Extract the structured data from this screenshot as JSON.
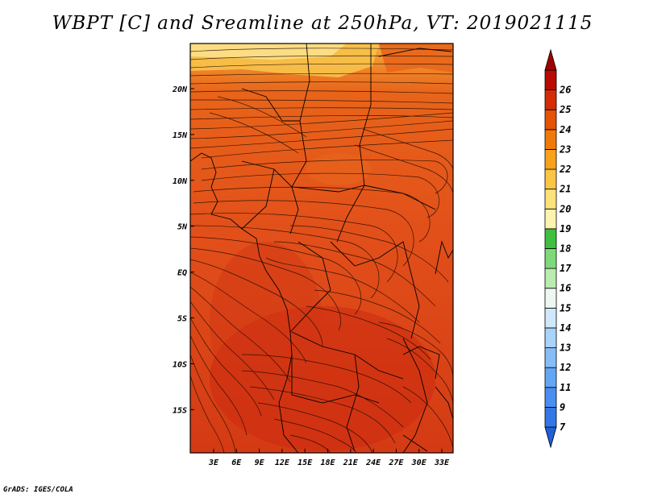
{
  "title": "WBPT [C] and Sreamline at 250hPa, VT: 2019021115",
  "credit": "GrADS: IGES/COLA",
  "map": {
    "lon_labels": [
      "3E",
      "6E",
      "9E",
      "12E",
      "15E",
      "18E",
      "21E",
      "24E",
      "27E",
      "30E",
      "33E"
    ],
    "lat_labels": [
      "20N",
      "15N",
      "10N",
      "5N",
      "EQ",
      "5S",
      "10S",
      "15S"
    ]
  },
  "colorbar": {
    "labels": [
      "7",
      "9",
      "11",
      "12",
      "13",
      "14",
      "15",
      "16",
      "17",
      "18",
      "19",
      "20",
      "21",
      "22",
      "23",
      "24",
      "25",
      "26"
    ],
    "colors": [
      "#1f5fd8",
      "#3377e6",
      "#4a8ff0",
      "#63a6f4",
      "#86bdf7",
      "#a8d3fa",
      "#cfe8fb",
      "#eef8f2",
      "#b9ecb0",
      "#7fd97a",
      "#3fbf3f",
      "#fff3b0",
      "#fde27a",
      "#fbc545",
      "#f7a21a",
      "#f07a08",
      "#e65206",
      "#d42c05",
      "#b80b03",
      "#a00000"
    ]
  }
}
